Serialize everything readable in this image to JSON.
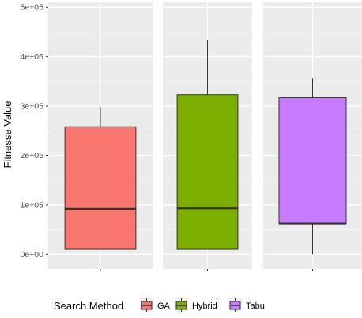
{
  "chart_data": {
    "type": "boxplot",
    "ylabel": "Fitnesse Value",
    "ylim": [
      -30000,
      510000
    ],
    "yticks": [
      0,
      100000,
      200000,
      300000,
      400000,
      500000
    ],
    "ytick_labels": [
      "0e+00",
      "1e+05",
      "2e+05",
      "3e+05",
      "4e+05",
      "5e+05"
    ],
    "facets": [
      "GA",
      "Hybrid",
      "Tabu"
    ],
    "legend": {
      "title": "Search Method",
      "position": "bottom",
      "entries": [
        "GA",
        "Hybrid",
        "Tabu"
      ]
    },
    "series": [
      {
        "name": "GA",
        "color": "#F8766D",
        "min": 10000,
        "q1": 10000,
        "median": 92000,
        "q3": 258000,
        "max": 298000
      },
      {
        "name": "Hybrid",
        "color": "#7CAE00",
        "min": 10000,
        "q1": 10000,
        "median": 93000,
        "q3": 323000,
        "max": 433000
      },
      {
        "name": "Tabu",
        "color": "#C77CFF",
        "min": 0,
        "q1": 62000,
        "median": 62000,
        "q3": 317000,
        "max": 356000
      }
    ],
    "grid": true
  }
}
